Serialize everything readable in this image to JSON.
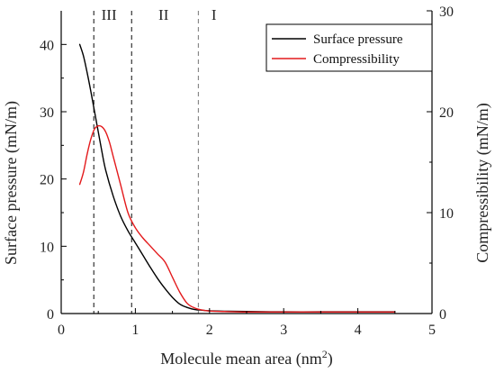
{
  "chart_data": {
    "type": "line",
    "title": "",
    "xlabel": "Molecule mean area (nm",
    "xlabel_sup": "2",
    "xlabel_close": ")",
    "ylabel": "Surface pressure (mN/m)",
    "y2label": "Compressibility (mN/m)",
    "xlim": [
      0,
      5
    ],
    "ylim": [
      0,
      45
    ],
    "y2lim": [
      0,
      30
    ],
    "xticks": [
      0,
      1,
      2,
      3,
      4,
      5
    ],
    "yticks": [
      0,
      10,
      20,
      30,
      40
    ],
    "y2ticks": [
      0,
      10,
      20,
      30
    ],
    "grid": false,
    "legend_position": "top-right",
    "regions": [
      {
        "label": "III",
        "x": 0.645
      },
      {
        "label": "II",
        "x": 1.38
      },
      {
        "label": "I",
        "x": 2.06
      }
    ],
    "boundaries": [
      {
        "x": 0.44,
        "color": "#333333"
      },
      {
        "x": 0.95,
        "color": "#333333"
      },
      {
        "x": 1.85,
        "color": "#888888"
      }
    ],
    "series": [
      {
        "name": "Surface pressure",
        "axis": "left",
        "color": "#000000",
        "x": [
          0.25,
          0.3,
          0.35,
          0.4,
          0.45,
          0.5,
          0.55,
          0.6,
          0.7,
          0.8,
          0.9,
          1.0,
          1.1,
          1.2,
          1.3,
          1.4,
          1.5,
          1.6,
          1.7,
          1.8,
          1.9,
          2.0,
          2.2,
          2.5,
          3.0,
          3.5,
          4.0,
          4.5
        ],
        "y": [
          40.0,
          38.3,
          35.8,
          33.0,
          30.0,
          27.0,
          24.0,
          21.3,
          17.5,
          14.5,
          12.3,
          10.5,
          8.7,
          6.9,
          5.2,
          3.7,
          2.4,
          1.4,
          0.9,
          0.6,
          0.5,
          0.4,
          0.35,
          0.3,
          0.25,
          0.25,
          0.25,
          0.25
        ]
      },
      {
        "name": "Compressibility",
        "axis": "right",
        "color": "#e31a1c",
        "x": [
          0.25,
          0.3,
          0.35,
          0.4,
          0.45,
          0.5,
          0.55,
          0.6,
          0.65,
          0.7,
          0.8,
          0.9,
          1.0,
          1.1,
          1.2,
          1.3,
          1.4,
          1.5,
          1.6,
          1.7,
          1.8,
          1.9,
          2.0,
          2.2,
          2.5,
          3.0,
          3.5,
          4.0,
          4.5
        ],
        "y": [
          12.8,
          14.0,
          15.8,
          17.3,
          18.3,
          18.6,
          18.5,
          18.0,
          17.0,
          15.6,
          12.8,
          10.0,
          8.5,
          7.5,
          6.7,
          5.9,
          5.1,
          3.6,
          2.1,
          1.0,
          0.55,
          0.35,
          0.25,
          0.2,
          0.15,
          0.15,
          0.15,
          0.15,
          0.15
        ]
      }
    ]
  }
}
